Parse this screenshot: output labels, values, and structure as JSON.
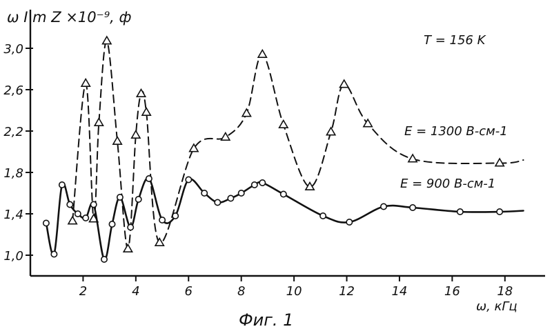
{
  "chart_data": {
    "type": "line",
    "title": "",
    "ylabel": "ω I m Z ×10⁻⁹, ф",
    "xlabel": "ω, кГц",
    "caption": "Фиг. 1",
    "annotation": "T = 156 K",
    "xlim": [
      0,
      19
    ],
    "ylim": [
      0.8,
      3.2
    ],
    "x_ticks": [
      2,
      4,
      6,
      8,
      10,
      12,
      14,
      16,
      18
    ],
    "y_ticks": [
      1.0,
      1.4,
      1.8,
      2.2,
      2.6,
      3.0
    ],
    "y_tick_labels": [
      "1,0",
      "1,4",
      "1,8",
      "2,2",
      "2,6",
      "3,0"
    ],
    "grid": false,
    "series": [
      {
        "name": "E = 1300 В-см-1",
        "marker": "triangle",
        "line": "dashed",
        "x": [
          1.6,
          2.1,
          2.4,
          2.6,
          2.9,
          3.3,
          3.7,
          4.0,
          4.2,
          4.4,
          4.9,
          6.2,
          7.4,
          8.2,
          8.8,
          9.6,
          10.6,
          11.4,
          11.9,
          12.8,
          14.5,
          17.8
        ],
        "y": [
          1.33,
          2.66,
          1.35,
          2.28,
          3.07,
          2.1,
          1.06,
          2.16,
          2.56,
          2.38,
          1.12,
          2.03,
          2.14,
          2.37,
          2.94,
          2.26,
          1.66,
          2.19,
          2.65,
          2.27,
          1.93,
          1.89
        ]
      },
      {
        "name": "E = 900 В-см-1",
        "marker": "circle",
        "line": "solid",
        "x": [
          0.6,
          0.9,
          1.2,
          1.5,
          1.8,
          2.1,
          2.4,
          2.8,
          3.1,
          3.4,
          3.8,
          4.1,
          4.5,
          5.0,
          5.5,
          6.0,
          6.6,
          7.1,
          7.6,
          8.0,
          8.5,
          8.8,
          9.6,
          11.1,
          12.1,
          13.4,
          14.5,
          16.3,
          17.8
        ],
        "y": [
          1.31,
          1.01,
          1.68,
          1.49,
          1.4,
          1.36,
          1.49,
          0.96,
          1.3,
          1.56,
          1.27,
          1.54,
          1.74,
          1.34,
          1.38,
          1.73,
          1.6,
          1.51,
          1.55,
          1.6,
          1.68,
          1.7,
          1.59,
          1.38,
          1.32,
          1.47,
          1.46,
          1.42,
          1.42
        ]
      }
    ]
  }
}
